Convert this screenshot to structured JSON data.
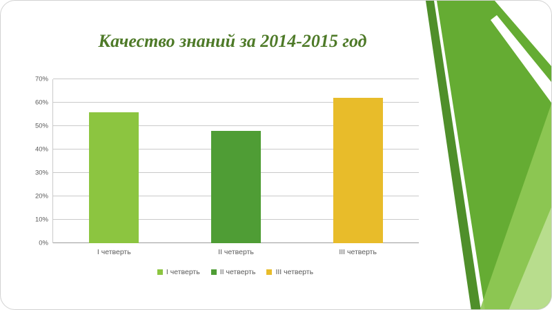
{
  "slide": {
    "title": "Качество знаний за 2014-2015 год",
    "title_color": "#4E7A28"
  },
  "theme": {
    "accent_green_light": "#8FC855",
    "accent_green_medium": "#65AC33",
    "accent_green_dark": "#4F8F2A"
  },
  "chart_data": {
    "type": "bar",
    "title": "Качество знаний за 2014-2015 год",
    "categories": [
      "I четверть",
      "II четверть",
      "III четверть"
    ],
    "values": [
      56,
      48,
      62
    ],
    "unit": "%",
    "series_colors": [
      "#8CC540",
      "#4F9D35",
      "#E8BC2A"
    ],
    "xlabel": "",
    "ylabel": "",
    "ylim": [
      0,
      70
    ],
    "ytick_step": 10,
    "ytick_labels": [
      "0%",
      "10%",
      "20%",
      "30%",
      "40%",
      "50%",
      "60%",
      "70%"
    ],
    "grid": true,
    "legend": [
      "I четверть",
      "II четверть",
      "III четверть"
    ],
    "legend_position": "bottom"
  }
}
